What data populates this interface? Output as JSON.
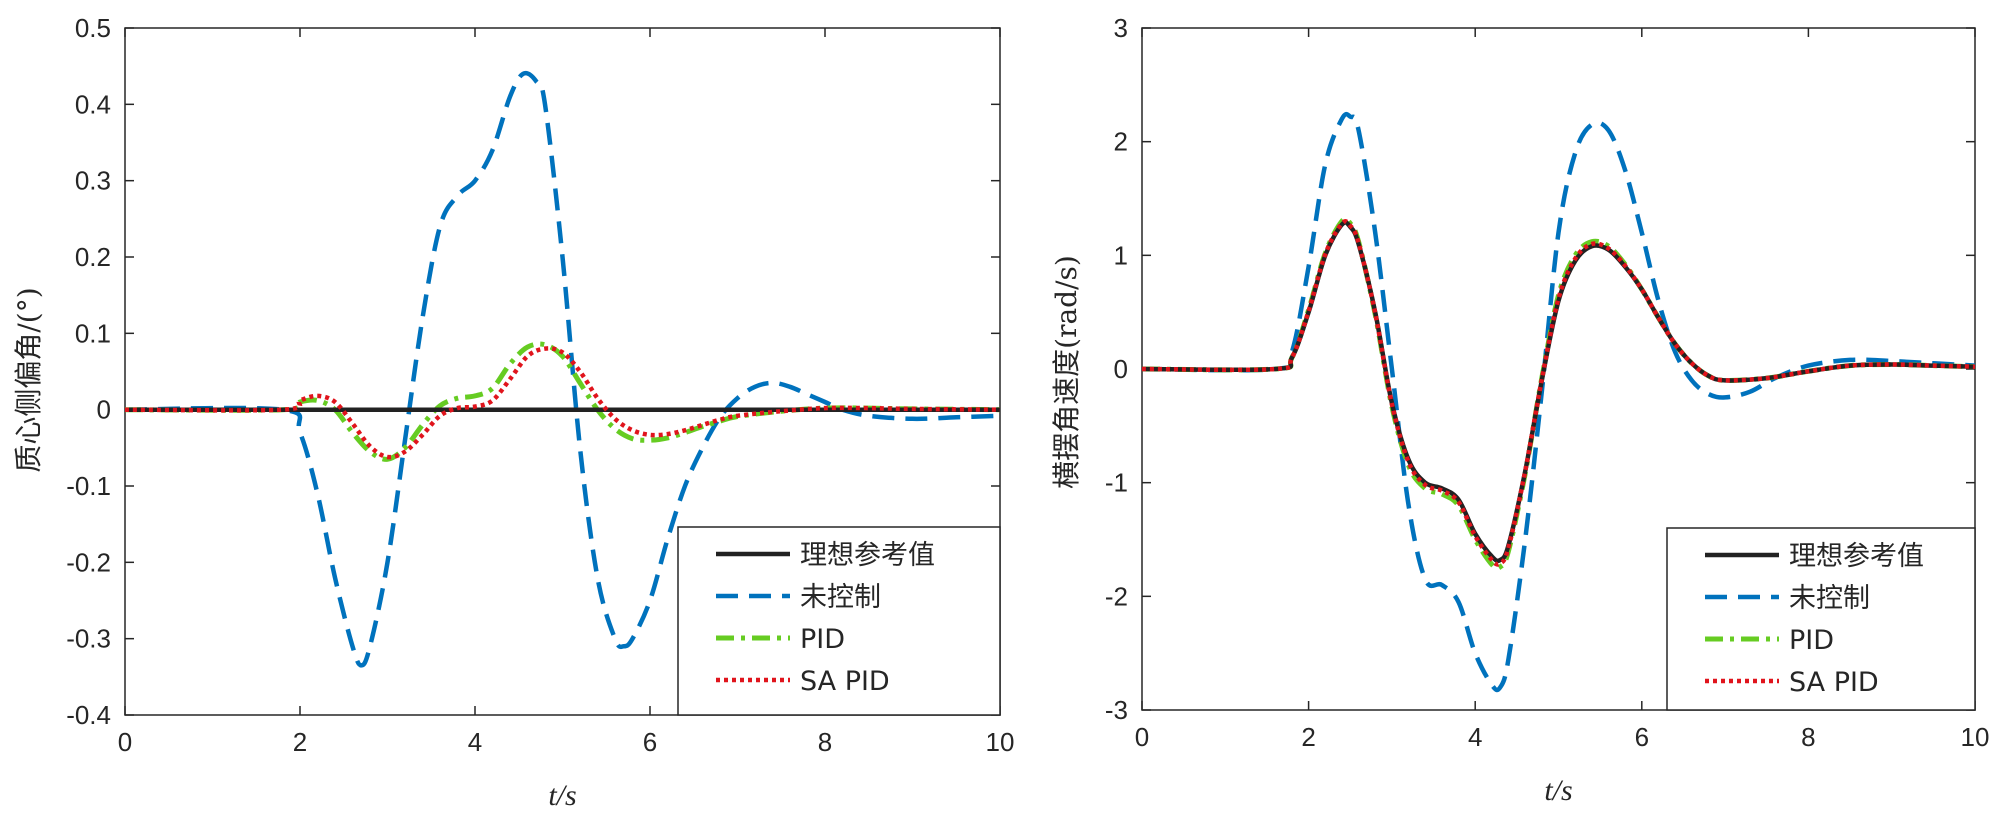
{
  "colors": {
    "ideal": "#222222",
    "uncontrolled": "#0072BD",
    "pid": "#66CC22",
    "sapid": "#E0141C"
  },
  "chart_data": [
    {
      "type": "line",
      "xlabel": "t/s",
      "ylabel": "质心侧偏角/(°)",
      "xlim": [
        0,
        10
      ],
      "ylim": [
        -0.4,
        0.5
      ],
      "xticks": [
        "0",
        "2",
        "4",
        "6",
        "8",
        "10"
      ],
      "yticks": [
        "-0.4",
        "-0.3",
        "-0.2",
        "-0.1",
        "0",
        "0.1",
        "0.2",
        "0.3",
        "0.4",
        "0.5"
      ],
      "legend_position": "bottom-right",
      "series": [
        {
          "name": "理想参考值",
          "style": "solid",
          "x": [
            0,
            10
          ],
          "y": [
            0,
            0
          ]
        },
        {
          "name": "未控制",
          "style": "dashed",
          "x": [
            0,
            1.8,
            2.0,
            2.2,
            2.4,
            2.6,
            2.7,
            2.8,
            3.0,
            3.2,
            3.4,
            3.6,
            3.8,
            4.0,
            4.2,
            4.4,
            4.55,
            4.7,
            4.8,
            5.0,
            5.2,
            5.4,
            5.6,
            5.7,
            5.8,
            6.0,
            6.2,
            6.4,
            6.6,
            6.8,
            7.0,
            7.2,
            7.4,
            7.6,
            7.8,
            8.0,
            8.2,
            8.5,
            9.0,
            9.5,
            10
          ],
          "y": [
            0,
            0,
            -0.03,
            -0.11,
            -0.22,
            -0.31,
            -0.335,
            -0.31,
            -0.2,
            -0.04,
            0.12,
            0.24,
            0.28,
            0.3,
            0.34,
            0.41,
            0.44,
            0.43,
            0.4,
            0.2,
            -0.05,
            -0.22,
            -0.3,
            -0.31,
            -0.3,
            -0.25,
            -0.17,
            -0.1,
            -0.05,
            -0.01,
            0.015,
            0.03,
            0.035,
            0.03,
            0.02,
            0.01,
            0,
            -0.008,
            -0.012,
            -0.01,
            -0.008
          ]
        },
        {
          "name": "PID",
          "style": "dashdot",
          "x": [
            0,
            1.8,
            2.0,
            2.2,
            2.4,
            2.6,
            2.8,
            3.0,
            3.2,
            3.4,
            3.6,
            3.8,
            4.0,
            4.2,
            4.4,
            4.6,
            4.8,
            5.0,
            5.2,
            5.4,
            5.6,
            5.8,
            6.0,
            6.2,
            6.4,
            6.6,
            6.8,
            7.0,
            7.5,
            8.0,
            8.5,
            9.0,
            10
          ],
          "y": [
            0,
            0,
            0.01,
            0.012,
            0,
            -0.03,
            -0.055,
            -0.065,
            -0.05,
            -0.02,
            0.005,
            0.015,
            0.018,
            0.028,
            0.06,
            0.082,
            0.085,
            0.07,
            0.035,
            0,
            -0.025,
            -0.038,
            -0.04,
            -0.037,
            -0.03,
            -0.022,
            -0.015,
            -0.009,
            -0.002,
            0.002,
            0.002,
            0.001,
            0
          ]
        },
        {
          "name": "SA PID",
          "style": "dotted",
          "x": [
            0,
            1.8,
            2.0,
            2.2,
            2.4,
            2.6,
            2.8,
            3.0,
            3.2,
            3.4,
            3.6,
            3.8,
            4.0,
            4.2,
            4.4,
            4.6,
            4.8,
            5.0,
            5.2,
            5.4,
            5.6,
            5.8,
            6.0,
            6.2,
            6.4,
            6.6,
            6.8,
            7.0,
            7.5,
            8.0,
            8.5,
            9.0,
            10
          ],
          "y": [
            0,
            0,
            0.012,
            0.018,
            0.01,
            -0.018,
            -0.048,
            -0.062,
            -0.055,
            -0.033,
            -0.008,
            0.002,
            0.004,
            0.012,
            0.04,
            0.07,
            0.08,
            0.075,
            0.05,
            0.015,
            -0.012,
            -0.027,
            -0.033,
            -0.032,
            -0.027,
            -0.02,
            -0.013,
            -0.008,
            -0.002,
            0.002,
            0.002,
            0.001,
            0
          ]
        }
      ]
    },
    {
      "type": "line",
      "xlabel": "t/s",
      "ylabel": "横摆角速度(rad/s)",
      "xlim": [
        0,
        10
      ],
      "ylim": [
        -3,
        3
      ],
      "xticks": [
        "0",
        "2",
        "4",
        "6",
        "8",
        "10"
      ],
      "yticks": [
        "-3",
        "-2",
        "-1",
        "0",
        "1",
        "2",
        "3"
      ],
      "legend_position": "bottom-right",
      "series": [
        {
          "name": "理想参考值",
          "style": "solid",
          "x": [
            0,
            1.6,
            1.8,
            2.0,
            2.2,
            2.4,
            2.5,
            2.6,
            2.8,
            3.0,
            3.2,
            3.4,
            3.6,
            3.8,
            4.0,
            4.2,
            4.3,
            4.4,
            4.6,
            4.8,
            5.0,
            5.2,
            5.4,
            5.6,
            5.8,
            6.0,
            6.2,
            6.4,
            6.6,
            6.8,
            7.0,
            7.5,
            8.0,
            8.5,
            9.0,
            9.5,
            10
          ],
          "y": [
            0,
            0,
            0.1,
            0.5,
            1.0,
            1.27,
            1.25,
            1.1,
            0.5,
            -0.3,
            -0.8,
            -1.0,
            -1.05,
            -1.15,
            -1.45,
            -1.65,
            -1.68,
            -1.55,
            -0.9,
            -0.1,
            0.6,
            0.95,
            1.08,
            1.05,
            0.9,
            0.7,
            0.45,
            0.22,
            0.05,
            -0.06,
            -0.1,
            -0.08,
            -0.02,
            0.03,
            0.04,
            0.03,
            0.02
          ]
        },
        {
          "name": "未控制",
          "style": "dashed",
          "x": [
            0,
            1.6,
            1.8,
            2.0,
            2.2,
            2.4,
            2.5,
            2.6,
            2.8,
            3.0,
            3.2,
            3.4,
            3.6,
            3.8,
            4.0,
            4.2,
            4.3,
            4.4,
            4.6,
            4.8,
            5.0,
            5.2,
            5.4,
            5.6,
            5.8,
            6.0,
            6.2,
            6.4,
            6.6,
            6.8,
            7.0,
            7.3,
            7.6,
            8.0,
            8.5,
            9.0,
            9.5,
            10
          ],
          "y": [
            0,
            0,
            0.15,
            0.9,
            1.8,
            2.2,
            2.22,
            2.1,
            1.2,
            0,
            -1.2,
            -1.85,
            -1.9,
            -2.05,
            -2.5,
            -2.78,
            -2.8,
            -2.55,
            -1.5,
            -0.2,
            1.2,
            1.9,
            2.15,
            2.1,
            1.75,
            1.2,
            0.6,
            0.15,
            -0.1,
            -0.22,
            -0.25,
            -0.2,
            -0.08,
            0.03,
            0.08,
            0.07,
            0.05,
            0.03
          ]
        },
        {
          "name": "PID",
          "style": "dashdot",
          "x": [
            0,
            1.6,
            1.8,
            2.0,
            2.2,
            2.4,
            2.5,
            2.6,
            2.8,
            3.0,
            3.2,
            3.4,
            3.6,
            3.8,
            4.0,
            4.2,
            4.3,
            4.4,
            4.6,
            4.8,
            5.0,
            5.2,
            5.4,
            5.6,
            5.8,
            6.0,
            6.2,
            6.4,
            6.6,
            6.8,
            7.0,
            7.5,
            8.0,
            8.5,
            9.0,
            9.5,
            10
          ],
          "y": [
            0,
            0,
            0.1,
            0.52,
            1.02,
            1.3,
            1.28,
            1.12,
            0.48,
            -0.33,
            -0.85,
            -1.05,
            -1.1,
            -1.2,
            -1.5,
            -1.72,
            -1.74,
            -1.6,
            -0.92,
            -0.08,
            0.65,
            1.0,
            1.12,
            1.08,
            0.92,
            0.7,
            0.45,
            0.22,
            0.05,
            -0.06,
            -0.1,
            -0.08,
            -0.02,
            0.03,
            0.04,
            0.03,
            0.02
          ]
        },
        {
          "name": "SA PID",
          "style": "dotted",
          "x": [
            0,
            1.6,
            1.8,
            2.0,
            2.2,
            2.4,
            2.5,
            2.6,
            2.8,
            3.0,
            3.2,
            3.4,
            3.6,
            3.8,
            4.0,
            4.2,
            4.3,
            4.4,
            4.6,
            4.8,
            5.0,
            5.2,
            5.4,
            5.6,
            5.8,
            6.0,
            6.2,
            6.4,
            6.6,
            6.8,
            7.0,
            7.5,
            8.0,
            8.5,
            9.0,
            9.5,
            10
          ],
          "y": [
            0,
            0,
            0.1,
            0.51,
            1.01,
            1.28,
            1.26,
            1.11,
            0.49,
            -0.31,
            -0.82,
            -1.02,
            -1.07,
            -1.17,
            -1.47,
            -1.68,
            -1.71,
            -1.57,
            -0.9,
            -0.09,
            0.62,
            0.97,
            1.1,
            1.06,
            0.91,
            0.7,
            0.45,
            0.22,
            0.05,
            -0.06,
            -0.1,
            -0.08,
            -0.02,
            0.03,
            0.04,
            0.03,
            0.02
          ]
        }
      ]
    }
  ]
}
